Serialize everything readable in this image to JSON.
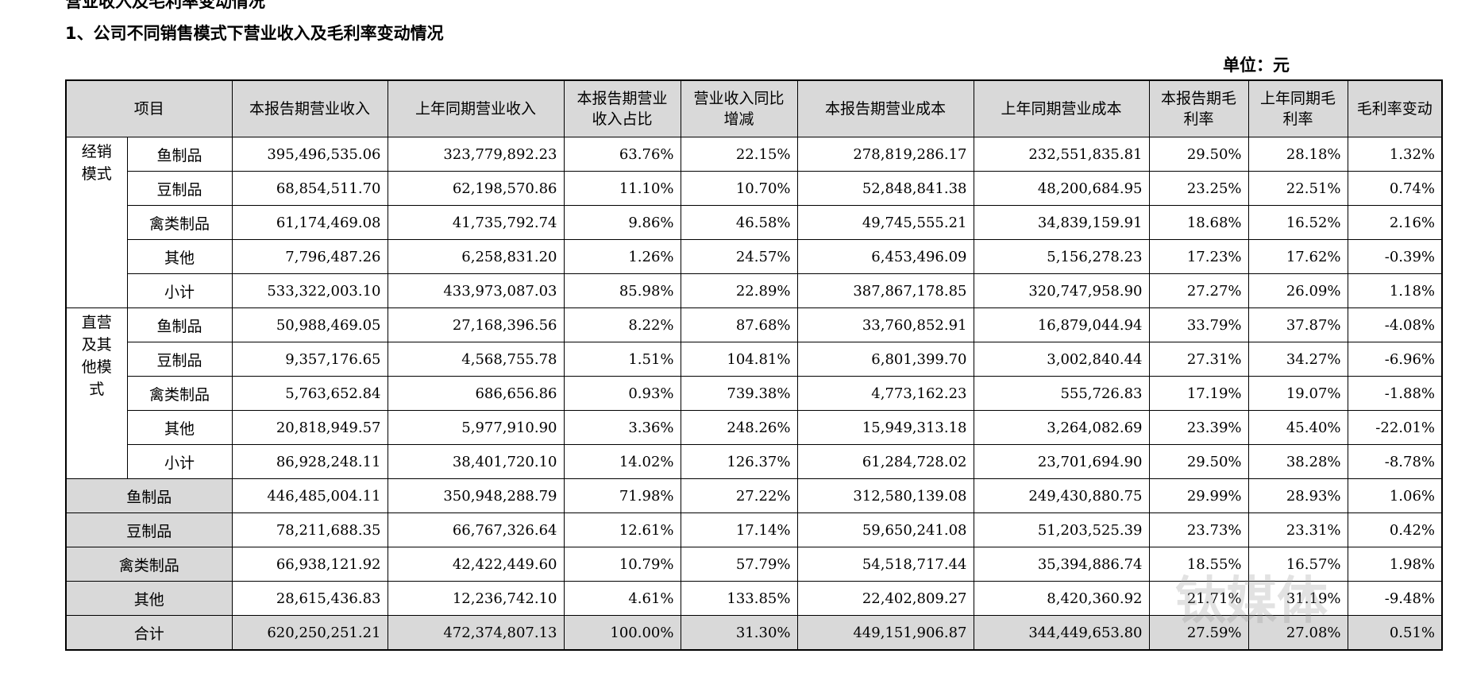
{
  "header": {
    "partial_title": "营业收入及毛利率变动情况",
    "title": "1、公司不同销售模式下营业收入及毛利率变动情况",
    "unit": "单位：元"
  },
  "table": {
    "columns": [
      "项目",
      "本报告期营业收入",
      "上年同期营业收入",
      "本报告期营业收入占比",
      "营业收入同比增减",
      "本报告期营业成本",
      "上年同期营业成本",
      "本报告期毛利率",
      "上年同期毛利率",
      "毛利率变动"
    ],
    "groups": [
      {
        "label": "经销模式",
        "rows": [
          {
            "label": "鱼制品",
            "values": [
              "395,496,535.06",
              "323,779,892.23",
              "63.76%",
              "22.15%",
              "278,819,286.17",
              "232,551,835.81",
              "29.50%",
              "28.18%",
              "1.32%"
            ]
          },
          {
            "label": "豆制品",
            "values": [
              "68,854,511.70",
              "62,198,570.86",
              "11.10%",
              "10.70%",
              "52,848,841.38",
              "48,200,684.95",
              "23.25%",
              "22.51%",
              "0.74%"
            ]
          },
          {
            "label": "禽类制品",
            "values": [
              "61,174,469.08",
              "41,735,792.74",
              "9.86%",
              "46.58%",
              "49,745,555.21",
              "34,839,159.91",
              "18.68%",
              "16.52%",
              "2.16%"
            ]
          },
          {
            "label": "其他",
            "values": [
              "7,796,487.26",
              "6,258,831.20",
              "1.26%",
              "24.57%",
              "6,453,496.09",
              "5,156,278.23",
              "17.23%",
              "17.62%",
              "-0.39%"
            ]
          },
          {
            "label": "小计",
            "values": [
              "533,322,003.10",
              "433,973,087.03",
              "85.98%",
              "22.89%",
              "387,867,178.85",
              "320,747,958.90",
              "27.27%",
              "26.09%",
              "1.18%"
            ]
          }
        ]
      },
      {
        "label": "直营及其他模式",
        "rows": [
          {
            "label": "鱼制品",
            "values": [
              "50,988,469.05",
              "27,168,396.56",
              "8.22%",
              "87.68%",
              "33,760,852.91",
              "16,879,044.94",
              "33.79%",
              "37.87%",
              "-4.08%"
            ]
          },
          {
            "label": "豆制品",
            "values": [
              "9,357,176.65",
              "4,568,755.78",
              "1.51%",
              "104.81%",
              "6,801,399.70",
              "3,002,840.44",
              "27.31%",
              "34.27%",
              "-6.96%"
            ]
          },
          {
            "label": "禽类制品",
            "values": [
              "5,763,652.84",
              "686,656.86",
              "0.93%",
              "739.38%",
              "4,773,162.23",
              "555,726.83",
              "17.19%",
              "19.07%",
              "-1.88%"
            ]
          },
          {
            "label": "其他",
            "values": [
              "20,818,949.57",
              "5,977,910.90",
              "3.36%",
              "248.26%",
              "15,949,313.18",
              "3,264,082.69",
              "23.39%",
              "45.40%",
              "-22.01%"
            ]
          },
          {
            "label": "小计",
            "values": [
              "86,928,248.11",
              "38,401,720.10",
              "14.02%",
              "126.37%",
              "61,284,728.02",
              "23,701,694.90",
              "29.50%",
              "38.28%",
              "-8.78%"
            ]
          }
        ]
      }
    ],
    "totals": [
      {
        "label": "鱼制品",
        "values": [
          "446,485,004.11",
          "350,948,288.79",
          "71.98%",
          "27.22%",
          "312,580,139.08",
          "249,430,880.75",
          "29.99%",
          "28.93%",
          "1.06%"
        ]
      },
      {
        "label": "豆制品",
        "values": [
          "78,211,688.35",
          "66,767,326.64",
          "12.61%",
          "17.14%",
          "59,650,241.08",
          "51,203,525.39",
          "23.73%",
          "23.31%",
          "0.42%"
        ]
      },
      {
        "label": "禽类制品",
        "values": [
          "66,938,121.92",
          "42,422,449.60",
          "10.79%",
          "57.79%",
          "54,518,717.44",
          "35,394,886.74",
          "18.55%",
          "16.57%",
          "1.98%"
        ]
      },
      {
        "label": "其他",
        "values": [
          "28,615,436.83",
          "12,236,742.10",
          "4.61%",
          "133.85%",
          "22,402,809.27",
          "8,420,360.92",
          "21.71%",
          "31.19%",
          "-9.48%"
        ]
      },
      {
        "label": "合计",
        "values": [
          "620,250,251.21",
          "472,374,807.13",
          "100.00%",
          "31.30%",
          "449,151,906.87",
          "344,449,653.80",
          "27.59%",
          "27.08%",
          "0.51%"
        ]
      }
    ]
  },
  "watermark": "钛媒体"
}
